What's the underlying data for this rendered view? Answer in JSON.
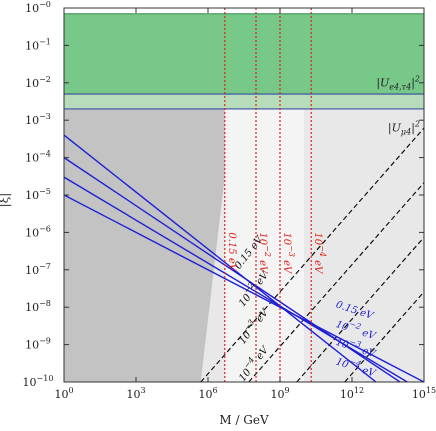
{
  "chart_data": {
    "type": "line",
    "title": "",
    "xlabel": "M / GeV",
    "ylabel": "|ξ|",
    "xscale": "log",
    "yscale": "log",
    "xlim": [
      1,
      1000000000000000.0
    ],
    "ylim": [
      1e-10,
      1
    ],
    "grid": false,
    "x_ticks": [
      {
        "value": 1,
        "label": "10",
        "exp": "0"
      },
      {
        "value": 1000,
        "label": "10",
        "exp": "3"
      },
      {
        "value": 1000000,
        "label": "10",
        "exp": "6"
      },
      {
        "value": 1000000000,
        "label": "10",
        "exp": "9"
      },
      {
        "value": 1000000000000,
        "label": "10",
        "exp": "12"
      },
      {
        "value": 1000000000000000,
        "label": "10",
        "exp": "15"
      }
    ],
    "y_ticks": [
      {
        "value": 1e-10,
        "label": "10",
        "exp": "−10"
      },
      {
        "value": 1e-09,
        "label": "10",
        "exp": "−9"
      },
      {
        "value": 1e-08,
        "label": "10",
        "exp": "−8"
      },
      {
        "value": 1e-07,
        "label": "10",
        "exp": "−7"
      },
      {
        "value": 1e-06,
        "label": "10",
        "exp": "−6"
      },
      {
        "value": 1e-05,
        "label": "10",
        "exp": "−5"
      },
      {
        "value": 0.0001,
        "label": "10",
        "exp": "−4"
      },
      {
        "value": 0.001,
        "label": "10",
        "exp": "−3"
      },
      {
        "value": 0.01,
        "label": "10",
        "exp": "−2"
      },
      {
        "value": 0.1,
        "label": "10",
        "exp": "−1"
      },
      {
        "value": 1,
        "label": "10",
        "exp": "−0"
      }
    ],
    "regions": [
      {
        "name": "|U_e4,τ4|²",
        "label": "|U",
        "sub": "e4,τ4",
        "sup": "2",
        "x": [
          1,
          1000000000000000.0
        ],
        "y": [
          0.005,
          0.7
        ],
        "color": "#78c88a",
        "border": "#2e8a45"
      },
      {
        "name": "|U_μ4|²",
        "label": "|U",
        "sub": "μ4",
        "sup": "2",
        "x": [
          1,
          1000000000000000.0
        ],
        "y": [
          0.002,
          0.005
        ],
        "color": "#b7dcbc",
        "border": "#2a3f9e"
      }
    ],
    "shaded": [
      {
        "name": "excluded-dark",
        "color": "#c3c3c3",
        "polygon": [
          [
            1,
            1e-10
          ],
          [
            1,
            0.002
          ],
          [
            5000000,
            0.002
          ],
          [
            5000000,
            1e-10
          ]
        ],
        "triangle_cut": [
          [
            1,
            1e-10
          ],
          [
            1,
            1e-10
          ]
        ]
      },
      {
        "name": "excluded-light",
        "color": "#e8e8e8"
      }
    ],
    "series": [
      {
        "group": "dashed-black",
        "label": "0.15 eV",
        "points": [
          [
            500000,
            1e-10
          ],
          [
            2.5e+19,
            1
          ]
        ]
      },
      {
        "group": "dashed-black",
        "label": "10⁻² eV",
        "points": [
          [
            50000000,
            1e-10
          ],
          [
            2.5e+21,
            1
          ]
        ]
      },
      {
        "group": "dashed-black",
        "label": "10⁻³ eV",
        "points": [
          [
            5000000000,
            1e-10
          ],
          [
            2.5e+23,
            1
          ]
        ]
      },
      {
        "group": "dashed-black",
        "label": "10⁻⁴ eV",
        "points": [
          [
            500000000000,
            1e-10
          ],
          [
            2.5e+25,
            1
          ]
        ]
      },
      {
        "group": "solid-blue",
        "label": "0.15 eV",
        "points": [
          [
            1,
            0.0004
          ],
          [
            10000000000000.0,
            1e-10
          ]
        ]
      },
      {
        "group": "solid-blue",
        "label": "10⁻² eV",
        "points": [
          [
            1,
            0.0001
          ],
          [
            100000000000000.0,
            1e-10
          ]
        ]
      },
      {
        "group": "solid-blue",
        "label": "10⁻³ eV",
        "points": [
          [
            1,
            3e-05
          ],
          [
            200000000000000.0,
            1e-10
          ]
        ]
      },
      {
        "group": "solid-blue",
        "label": "10⁻⁴ eV",
        "points": [
          [
            1,
            1e-05
          ],
          [
            1000000000000000.0,
            1e-10
          ]
        ]
      },
      {
        "group": "dotted-red",
        "label": "0.15 eV",
        "x": 5000000
      },
      {
        "group": "dotted-red",
        "label": "10⁻² eV",
        "x": 100000000
      },
      {
        "group": "dotted-red",
        "label": "10⁻³ eV",
        "x": 1000000000
      },
      {
        "group": "dotted-red",
        "label": "10⁻⁴ eV",
        "x": 20000000000
      }
    ],
    "annotations": {
      "black": [
        {
          "text": "0.15 eV",
          "pos": [
            20000000,
            1e-07
          ]
        },
        {
          "text": "10",
          "exp": "−2",
          "unit": " eV",
          "pos": [
            30000000,
            1e-08
          ]
        },
        {
          "text": "10",
          "exp": "−3",
          "unit": " eV",
          "pos": [
            30000000,
            1e-09
          ]
        },
        {
          "text": "10",
          "exp": "−4",
          "unit": " eV",
          "pos": [
            30000000,
            1e-10
          ]
        }
      ],
      "blue": [
        {
          "text": "0.15 eV",
          "pos": [
            200000000000.0,
            1e-08
          ]
        },
        {
          "text": "10",
          "exp": "−2",
          "unit": " eV",
          "pos": [
            200000000000.0,
            3e-09
          ]
        },
        {
          "text": "10",
          "exp": "−3",
          "unit": " eV",
          "pos": [
            200000000000.0,
            1e-09
          ]
        },
        {
          "text": "10",
          "exp": "−4",
          "unit": " eV",
          "pos": [
            200000000000.0,
            3e-10
          ]
        }
      ],
      "red": [
        {
          "text": "0.15 eV",
          "pos": [
            5000000,
            1e-06
          ]
        },
        {
          "text": "10",
          "exp": "−2",
          "unit": " eV",
          "pos": [
            100000000,
            1e-06
          ]
        },
        {
          "text": "10",
          "exp": "−3",
          "unit": " eV",
          "pos": [
            1000000000,
            1e-06
          ]
        },
        {
          "text": "10",
          "exp": "−4",
          "unit": " eV",
          "pos": [
            20000000000,
            1e-06
          ]
        }
      ]
    }
  }
}
